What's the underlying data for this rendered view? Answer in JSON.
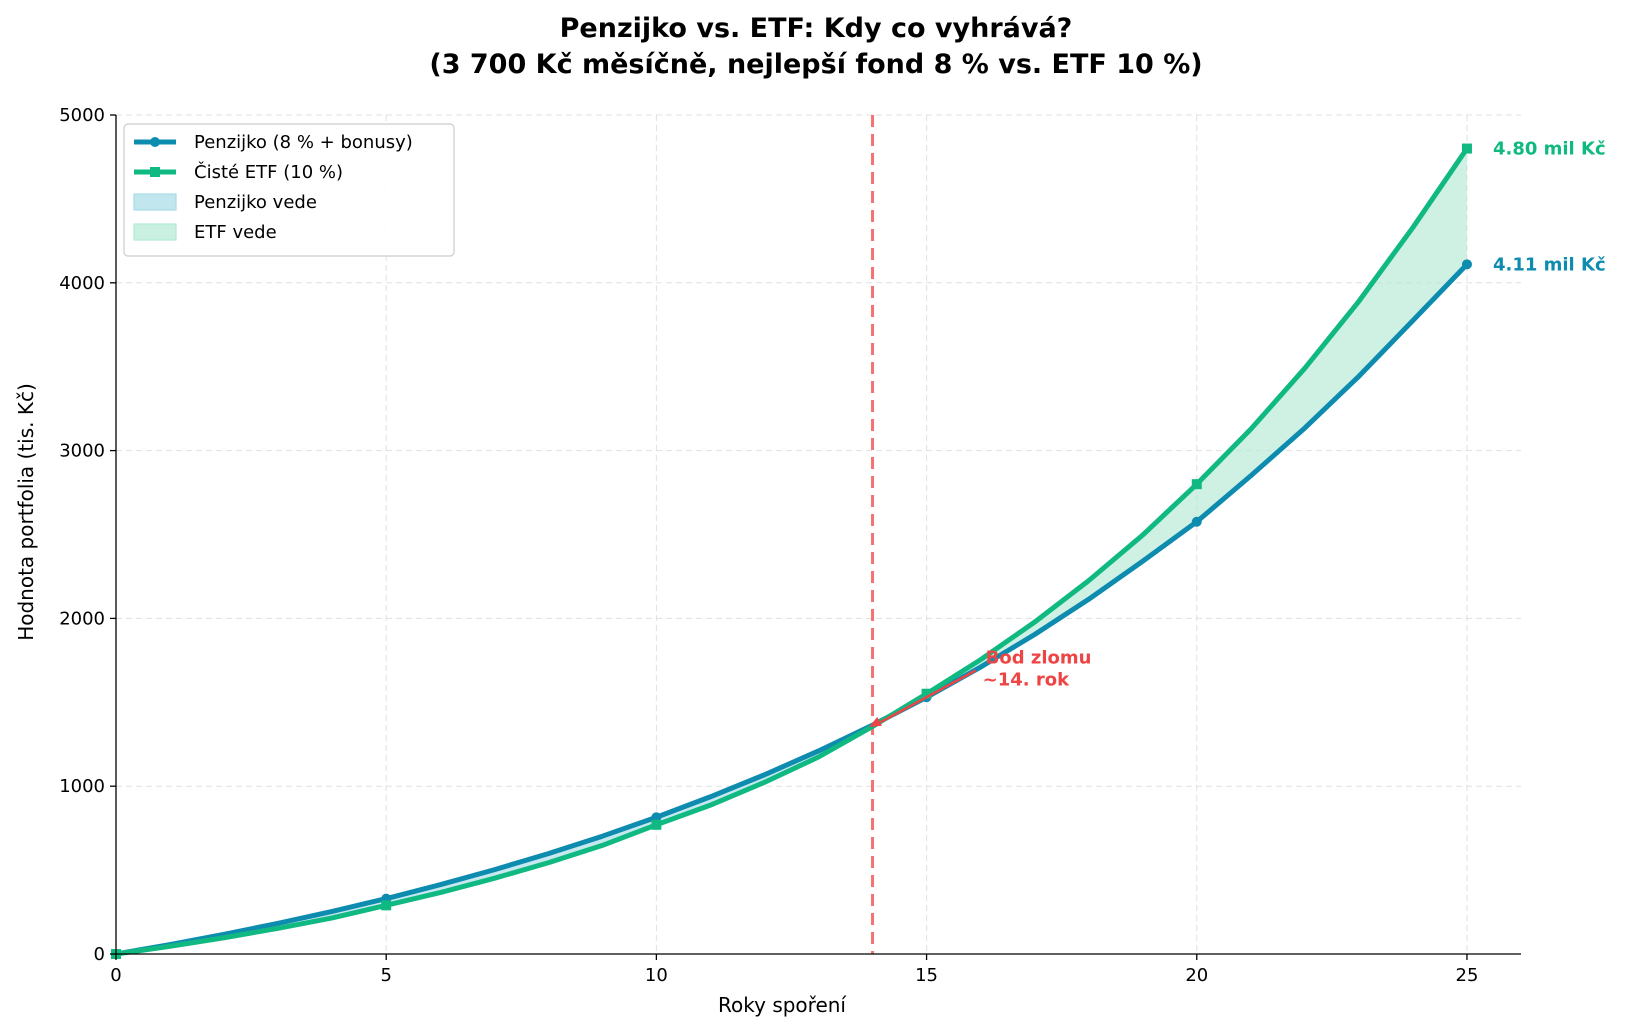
{
  "chart_data": {
    "type": "line",
    "title_line1": "Penzijko vs. ETF: Kdy co vyhrává?",
    "title_line2": "(3 700 Kč měsíčně, nejlepší fond 8 % vs. ETF 10 %)",
    "xlabel": "Roky spoření",
    "ylabel": "Hodnota portfolia (tis. Kč)",
    "xlim": [
      0,
      26
    ],
    "ylim": [
      0,
      5000
    ],
    "x_ticks": [
      "0",
      "5",
      "10",
      "15",
      "20",
      "25"
    ],
    "y_ticks": [
      "0",
      "1000",
      "2000",
      "3000",
      "4000",
      "5000"
    ],
    "grid": true,
    "legend_position": "top-left",
    "x": [
      0,
      1,
      2,
      3,
      4,
      5,
      6,
      7,
      8,
      9,
      10,
      11,
      12,
      13,
      14,
      15,
      16,
      17,
      18,
      19,
      20,
      21,
      22,
      23,
      24,
      25
    ],
    "series": [
      {
        "name": "Penzijko (8 % + bonusy)",
        "color": "#0e8cb0",
        "marker": "circle",
        "marker_x": [
          0,
          5,
          10,
          15,
          20,
          25
        ],
        "values": [
          0,
          56,
          117,
          183,
          254,
          330,
          413,
          502,
          598,
          702,
          815,
          937,
          1068,
          1210,
          1364,
          1530,
          1710,
          1904,
          2114,
          2341,
          2576,
          2850,
          3135,
          3443,
          3775,
          4110
        ]
      },
      {
        "name": "Čisté ETF (10 %)",
        "color": "#10b981",
        "marker": "square",
        "marker_x": [
          0,
          5,
          10,
          15,
          20,
          25
        ],
        "values": [
          0,
          46,
          97,
          153,
          215,
          290,
          366,
          451,
          544,
          647,
          770,
          887,
          1023,
          1174,
          1356,
          1551,
          1754,
          1978,
          2225,
          2497,
          2800,
          3128,
          3491,
          3890,
          4330,
          4800
        ]
      }
    ],
    "fill_legend": [
      {
        "name": "Penzijko vede",
        "color": "#a8dbe7"
      },
      {
        "name": "ETF vede",
        "color": "#b3ead6"
      }
    ],
    "breakeven": {
      "x": 14,
      "color": "#ef4444"
    },
    "annotation": {
      "line1": "Bod zlomu",
      "line2": "~14. rok",
      "point": [
        14,
        1364
      ],
      "text_at": [
        16,
        1600
      ],
      "color": "#ef4444"
    },
    "end_labels": [
      {
        "text": "4.80 mil Kč",
        "color": "#10b981",
        "value": 4800
      },
      {
        "text": "4.11 mil Kč",
        "color": "#0e8cb0",
        "value": 4110
      }
    ]
  }
}
